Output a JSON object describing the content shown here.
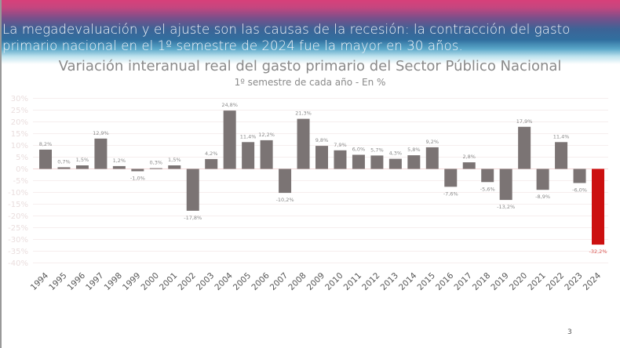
{
  "headline": "La megadevaluación y el ajuste son las causas de la recesión: la contracción del gasto primario nacional en el 1º semestre de 2024 fue la mayor en 30 años.",
  "page_number": "3",
  "chart_data": {
    "type": "bar",
    "title": "Variación interanual real del gasto primario del Sector Público Nacional",
    "subtitle": "1º semestre de cada año - En %",
    "xlabel": "",
    "ylabel": "",
    "ylim": [
      -40,
      30
    ],
    "yticks": [
      30,
      25,
      20,
      15,
      10,
      5,
      0,
      -5,
      -10,
      -15,
      -20,
      -25,
      -30,
      -35,
      -40
    ],
    "ytick_labels": [
      "30%",
      "25%",
      "20%",
      "15%",
      "10%",
      "5%",
      "0%",
      "-5%",
      "-10%",
      "-15%",
      "-20%",
      "-25%",
      "-30%",
      "-35%",
      "-40%"
    ],
    "grid": true,
    "categories": [
      "1994",
      "1995",
      "1996",
      "1997",
      "1998",
      "1999",
      "2000",
      "2001",
      "2002",
      "2003",
      "2004",
      "2005",
      "2006",
      "2007",
      "2008",
      "2009",
      "2010",
      "2011",
      "2012",
      "2013",
      "2014",
      "2015",
      "2016",
      "2017",
      "2018",
      "2019",
      "2020",
      "2021",
      "2022",
      "2023",
      "2024"
    ],
    "values": [
      8.2,
      0.7,
      1.5,
      12.9,
      1.2,
      -1.0,
      0.3,
      1.5,
      -17.8,
      4.2,
      24.8,
      11.4,
      12.2,
      -10.2,
      21.3,
      9.8,
      7.9,
      6.0,
      5.7,
      4.3,
      5.8,
      9.2,
      -7.6,
      2.8,
      -5.6,
      -13.2,
      17.9,
      -8.9,
      11.4,
      -6.0,
      -32.2
    ],
    "data_labels": [
      "8,2%",
      "0,7%",
      "1,5%",
      "12,9%",
      "1,2%",
      "-1,0%",
      "0,3%",
      "1,5%",
      "-17,8%",
      "4,2%",
      "24,8%",
      "11,4%",
      "12,2%",
      "-10,2%",
      "21,3%",
      "9,8%",
      "7,9%",
      "6,0%",
      "5,7%",
      "4,3%",
      "5,8%",
      "9,2%",
      "-7,6%",
      "2,8%",
      "-5,6%",
      "-13,2%",
      "17,9%",
      "-8,9%",
      "11,4%",
      "-6,0%",
      "-32,2%"
    ],
    "colors": {
      "default": "#7b7474",
      "highlight": "#cc1010",
      "highlight_label": "#d9534f"
    },
    "highlight_index": 30
  }
}
